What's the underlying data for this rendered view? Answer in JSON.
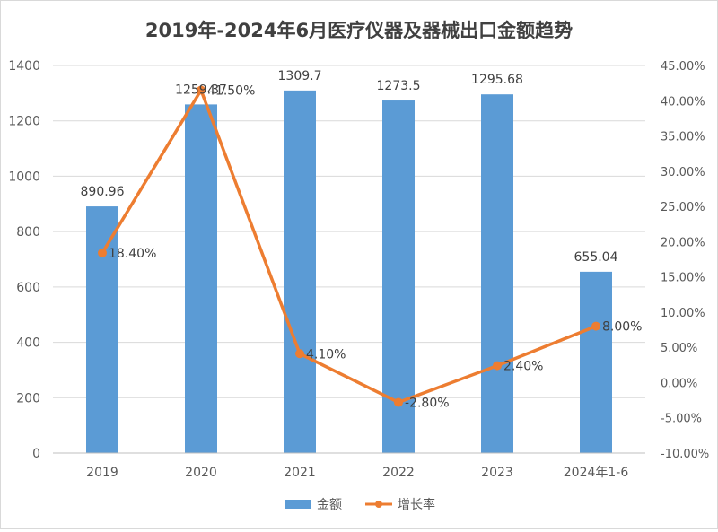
{
  "chart_data": {
    "type": "bar",
    "title": "2019年-2024年6月医疗仪器及器械出口金额趋势",
    "categories": [
      "2019",
      "2020",
      "2021",
      "2022",
      "2023",
      "2024年1-6"
    ],
    "series": [
      {
        "name": "金额",
        "type": "bar",
        "axis": "left",
        "color": "#5B9BD5",
        "values": [
          890.96,
          1259.37,
          1309.7,
          1273.5,
          1295.68,
          655.04
        ],
        "labels": [
          "890.96",
          "1259.37",
          "1309.7",
          "1273.5",
          "1295.68",
          "655.04"
        ]
      },
      {
        "name": "增长率",
        "type": "line",
        "axis": "right",
        "color": "#ED7D31",
        "values": [
          18.4,
          41.5,
          4.1,
          -2.8,
          2.4,
          8.0
        ],
        "labels": [
          "18.40%",
          "41.50%",
          "4.10%",
          "-2.80%",
          "2.40%",
          "8.00%"
        ]
      }
    ],
    "y_left": {
      "range": [
        0,
        1400
      ],
      "ticks": [
        0,
        200,
        400,
        600,
        800,
        1000,
        1200,
        1400
      ],
      "tick_labels": [
        "0",
        "200",
        "400",
        "600",
        "800",
        "1000",
        "1200",
        "1400"
      ]
    },
    "y_right": {
      "range": [
        -10,
        45
      ],
      "ticks": [
        -10,
        -5,
        0,
        5,
        10,
        15,
        20,
        25,
        30,
        35,
        40,
        45
      ],
      "tick_labels": [
        "-10.00%",
        "-5.00%",
        "0.00%",
        "5.00%",
        "10.00%",
        "15.00%",
        "20.00%",
        "25.00%",
        "30.00%",
        "35.00%",
        "40.00%",
        "45.00%"
      ]
    },
    "grid": true,
    "legend_position": "bottom"
  }
}
